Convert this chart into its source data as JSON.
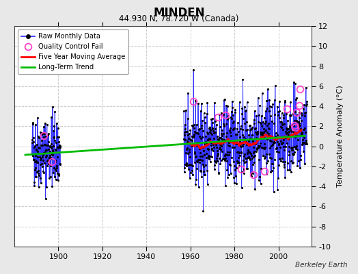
{
  "title": "MINDEN",
  "subtitle": "44.930 N, 78.720 W (Canada)",
  "ylabel": "Temperature Anomaly (°C)",
  "credit": "Berkeley Earth",
  "xlim": [
    1880,
    2015
  ],
  "ylim": [
    -10,
    12
  ],
  "yticks": [
    -10,
    -8,
    -6,
    -4,
    -2,
    0,
    2,
    4,
    6,
    8,
    10,
    12
  ],
  "xticks": [
    1900,
    1920,
    1940,
    1960,
    1980,
    2000
  ],
  "background_color": "#e8e8e8",
  "plot_bg_color": "#ffffff",
  "raw_line_color": "#3333ff",
  "raw_marker_color": "#000000",
  "qc_fail_color": "#ff44cc",
  "moving_avg_color": "#ff0000",
  "trend_color": "#00bb00",
  "grid_color": "#cccccc",
  "early_start": 1888,
  "early_end": 1901,
  "modern_start": 1957,
  "modern_end": 2013,
  "trend_x": [
    1885,
    2012
  ],
  "trend_y": [
    -0.85,
    1.05
  ],
  "seed": 42
}
